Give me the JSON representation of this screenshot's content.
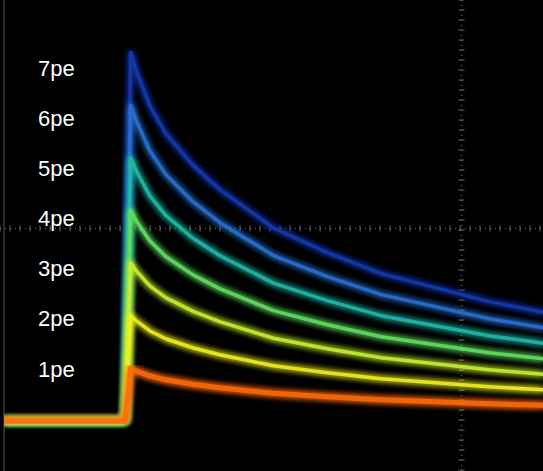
{
  "chart_data": {
    "type": "line",
    "x": [
      0,
      22.5,
      23.5,
      24.5,
      27,
      30,
      35,
      40,
      50,
      60,
      70,
      80,
      90,
      100
    ],
    "xlim": [
      0,
      100
    ],
    "ylim": [
      -1,
      8.4
    ],
    "yticks": [
      {
        "value": 1,
        "label": "1pe"
      },
      {
        "value": 2,
        "label": "2pe"
      },
      {
        "value": 3,
        "label": "3pe"
      },
      {
        "value": 4,
        "label": "4pe"
      },
      {
        "value": 5,
        "label": "5pe"
      },
      {
        "value": 6,
        "label": "6pe"
      },
      {
        "value": 7,
        "label": "7pe"
      }
    ],
    "tick_labels": "y",
    "series": [
      {
        "color": "#ff6a10",
        "values": [
          0,
          0,
          1.05,
          1.0,
          0.9,
          0.82,
          0.73,
          0.66,
          0.55,
          0.48,
          0.42,
          0.38,
          0.34,
          0.31
        ]
      },
      {
        "color": "#f0f020",
        "values": [
          0,
          0,
          2.1,
          2.0,
          1.8,
          1.64,
          1.46,
          1.32,
          1.1,
          0.96,
          0.84,
          0.76,
          0.68,
          0.62
        ]
      },
      {
        "color": "#c8f030",
        "values": [
          0,
          0,
          3.15,
          3.0,
          2.7,
          2.46,
          2.19,
          1.98,
          1.65,
          1.44,
          1.26,
          1.14,
          1.02,
          0.93
        ]
      },
      {
        "color": "#60e060",
        "values": [
          0,
          0,
          4.2,
          4.0,
          3.6,
          3.28,
          2.92,
          2.64,
          2.2,
          1.92,
          1.68,
          1.52,
          1.36,
          1.24
        ]
      },
      {
        "color": "#20b8a8",
        "values": [
          0,
          0,
          5.25,
          5.0,
          4.5,
          4.1,
          3.65,
          3.3,
          2.75,
          2.4,
          2.1,
          1.9,
          1.7,
          1.55
        ]
      },
      {
        "color": "#2a70d0",
        "values": [
          0,
          0,
          6.3,
          6.0,
          5.4,
          4.92,
          4.38,
          3.96,
          3.3,
          2.88,
          2.52,
          2.28,
          2.04,
          1.86
        ]
      },
      {
        "color": "#1838b0",
        "values": [
          0,
          0,
          7.35,
          7.0,
          6.3,
          5.74,
          5.11,
          4.62,
          3.85,
          3.36,
          2.94,
          2.66,
          2.38,
          2.17
        ]
      }
    ]
  }
}
